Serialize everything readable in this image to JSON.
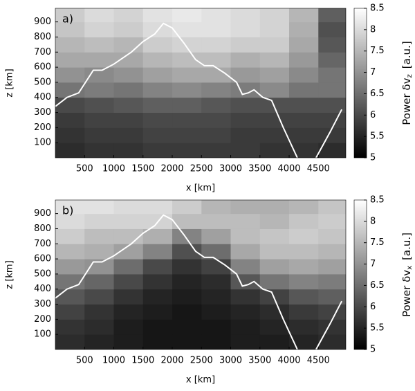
{
  "chart_data": [
    {
      "type": "heatmap",
      "panel_label": "a)",
      "xlabel": "x [km]",
      "ylabel": "z [km]",
      "colorbar_label": {
        "text": "Power δv",
        "subscript": "z",
        "unit": "[a.u.]"
      },
      "xlim": [
        0,
        4970
      ],
      "ylim": [
        0,
        990
      ],
      "xticks": [
        500,
        1000,
        1500,
        2000,
        2500,
        3000,
        3500,
        4000,
        4500
      ],
      "yticks": [
        100,
        200,
        300,
        400,
        500,
        600,
        700,
        800,
        900
      ],
      "clim": [
        5,
        8.5
      ],
      "cticks": [
        5,
        5.5,
        6,
        6.5,
        7,
        7.5,
        8,
        8.5
      ],
      "x": [
        250,
        750,
        1250,
        1750,
        2250,
        2750,
        3250,
        3750,
        4250,
        4750
      ],
      "y": [
        50,
        150,
        250,
        350,
        450,
        550,
        650,
        750,
        850,
        950
      ],
      "z": [
        [
          5.6,
          5.7,
          5.7,
          5.8,
          5.8,
          5.8,
          5.8,
          5.7,
          5.7,
          5.6
        ],
        [
          5.7,
          5.8,
          5.8,
          5.9,
          5.9,
          5.9,
          5.8,
          5.8,
          5.8,
          5.8
        ],
        [
          5.8,
          5.9,
          5.9,
          6.0,
          6.0,
          6.0,
          5.9,
          5.9,
          5.9,
          5.9
        ],
        [
          6.0,
          6.1,
          6.2,
          6.3,
          6.3,
          6.2,
          6.1,
          6.1,
          6.1,
          6.1
        ],
        [
          6.6,
          6.7,
          6.6,
          6.8,
          6.9,
          6.8,
          6.7,
          6.9,
          6.6,
          6.6
        ],
        [
          7.0,
          6.9,
          7.0,
          7.2,
          7.3,
          7.3,
          7.1,
          7.2,
          6.9,
          6.6
        ],
        [
          7.3,
          7.3,
          7.3,
          7.5,
          7.6,
          7.6,
          7.4,
          7.5,
          7.1,
          6.4
        ],
        [
          7.5,
          7.6,
          7.5,
          7.8,
          7.9,
          7.9,
          7.8,
          7.8,
          7.3,
          6.2
        ],
        [
          7.7,
          7.9,
          7.8,
          8.0,
          8.1,
          8.1,
          8.0,
          7.9,
          7.4,
          6.1
        ],
        [
          7.8,
          8.0,
          7.9,
          8.1,
          8.2,
          8.1,
          8.0,
          7.9,
          7.5,
          6.3
        ]
      ],
      "line": {
        "color": "#ffffff",
        "x": [
          0,
          200,
          400,
          650,
          800,
          1000,
          1300,
          1500,
          1700,
          1850,
          2000,
          2200,
          2400,
          2550,
          2700,
          2900,
          3100,
          3200,
          3300,
          3400,
          3550,
          3700,
          3900,
          4140,
          4300,
          4460,
          4700,
          4900
        ],
        "values": [
          340,
          400,
          430,
          580,
          580,
          620,
          700,
          770,
          820,
          890,
          860,
          760,
          650,
          610,
          610,
          560,
          500,
          420,
          430,
          450,
          400,
          380,
          200,
          0,
          null,
          0,
          170,
          320
        ]
      }
    },
    {
      "type": "heatmap",
      "panel_label": "b)",
      "xlabel": "x [km]",
      "ylabel": "z [km]",
      "colorbar_label": {
        "text": "Power δv",
        "subscript": "x",
        "unit": "[a.u.]"
      },
      "xlim": [
        0,
        4970
      ],
      "ylim": [
        0,
        990
      ],
      "xticks": [
        500,
        1000,
        1500,
        2000,
        2500,
        3000,
        3500,
        4000,
        4500
      ],
      "yticks": [
        100,
        200,
        300,
        400,
        500,
        600,
        700,
        800,
        900
      ],
      "clim": [
        5,
        8.5
      ],
      "cticks": [
        5,
        5.5,
        6,
        6.5,
        7,
        7.5,
        8,
        8.5
      ],
      "x": [
        250,
        750,
        1250,
        1750,
        2250,
        2750,
        3250,
        3750,
        4250,
        4750
      ],
      "y": [
        50,
        150,
        250,
        350,
        450,
        550,
        650,
        750,
        850,
        950
      ],
      "z": [
        [
          5.6,
          5.5,
          5.4,
          5.3,
          5.3,
          5.3,
          5.4,
          5.4,
          5.5,
          5.6
        ],
        [
          5.7,
          5.6,
          5.4,
          5.3,
          5.3,
          5.3,
          5.4,
          5.5,
          5.6,
          5.7
        ],
        [
          5.9,
          5.7,
          5.5,
          5.4,
          5.3,
          5.4,
          5.5,
          5.6,
          5.8,
          5.9
        ],
        [
          6.2,
          6.0,
          5.7,
          5.5,
          5.4,
          5.5,
          5.7,
          5.9,
          6.2,
          6.3
        ],
        [
          6.6,
          6.4,
          6.0,
          5.7,
          5.5,
          5.6,
          6.2,
          6.6,
          6.8,
          6.7
        ],
        [
          7.1,
          7.0,
          6.5,
          6.0,
          5.7,
          5.9,
          6.8,
          7.2,
          7.3,
          7.2
        ],
        [
          7.5,
          7.4,
          7.2,
          6.8,
          6.1,
          6.5,
          7.3,
          7.6,
          7.6,
          7.5
        ],
        [
          7.8,
          7.6,
          7.6,
          7.4,
          6.8,
          7.2,
          7.6,
          7.7,
          7.8,
          7.7
        ],
        [
          8.0,
          7.9,
          7.9,
          7.9,
          7.6,
          7.6,
          7.6,
          7.5,
          7.7,
          7.8
        ],
        [
          8.1,
          8.1,
          8.0,
          8.0,
          7.8,
          7.5,
          7.4,
          7.4,
          7.5,
          7.7
        ]
      ],
      "line": {
        "color": "#ffffff",
        "x": [
          0,
          200,
          400,
          650,
          800,
          1000,
          1300,
          1500,
          1700,
          1850,
          2000,
          2200,
          2400,
          2550,
          2700,
          2900,
          3100,
          3200,
          3300,
          3400,
          3550,
          3700,
          3900,
          4140,
          4300,
          4460,
          4700,
          4900
        ],
        "values": [
          340,
          400,
          430,
          580,
          580,
          620,
          700,
          770,
          820,
          890,
          860,
          760,
          650,
          610,
          610,
          560,
          500,
          420,
          430,
          450,
          400,
          380,
          200,
          0,
          null,
          0,
          170,
          320
        ]
      }
    }
  ]
}
